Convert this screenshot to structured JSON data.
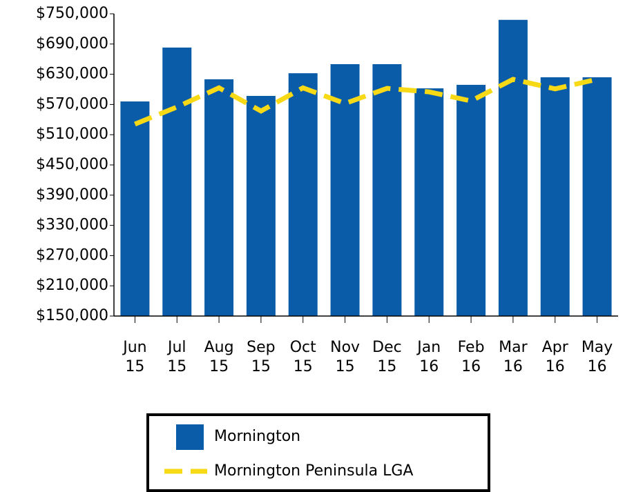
{
  "chart_data": {
    "type": "bar",
    "categories": [
      "Jun 15",
      "Jul 15",
      "Aug 15",
      "Sep 15",
      "Oct 15",
      "Nov 15",
      "Dec 15",
      "Jan 16",
      "Feb 16",
      "Mar 16",
      "Apr 16",
      "May 16"
    ],
    "series": [
      {
        "name": "Mornington",
        "type": "bar",
        "color": "#0b5ca8",
        "values": [
          576000,
          683000,
          620000,
          587000,
          632000,
          650000,
          650000,
          602000,
          609000,
          738000,
          624000,
          624000
        ]
      },
      {
        "name": "Mornington Peninsula LGA",
        "type": "line",
        "color": "#f7d916",
        "values": [
          531000,
          565000,
          603000,
          557000,
          603000,
          572000,
          602000,
          595000,
          577000,
          620000,
          601000,
          620000
        ]
      }
    ],
    "ylim": [
      150000,
      750000
    ],
    "yticks": [
      {
        "value": 150000,
        "label": "$150,000"
      },
      {
        "value": 210000,
        "label": "$210,000"
      },
      {
        "value": 270000,
        "label": "$270,000"
      },
      {
        "value": 330000,
        "label": "$330,000"
      },
      {
        "value": 390000,
        "label": "$390,000"
      },
      {
        "value": 450000,
        "label": "$450,000"
      },
      {
        "value": 510000,
        "label": "$510,000"
      },
      {
        "value": 570000,
        "label": "$570,000"
      },
      {
        "value": 630000,
        "label": "$630,000"
      },
      {
        "value": 690000,
        "label": "$690,000"
      },
      {
        "value": 750000,
        "label": "$750,000"
      }
    ],
    "grid": false
  }
}
